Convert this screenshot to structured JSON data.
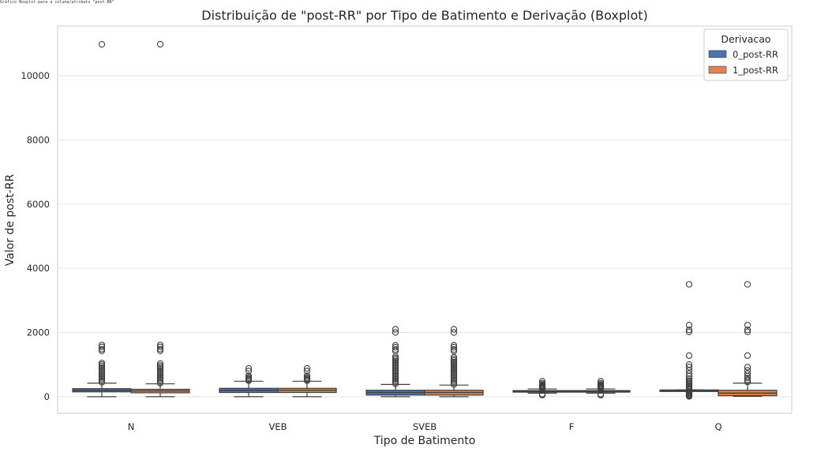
{
  "top_caption": "Gráfico Boxplot para a coluna/atributo \"post-RR\"",
  "chart_data": {
    "type": "boxplot",
    "title": "Distribuição de \"post-RR\" por Tipo de Batimento e Derivação (Boxplot)",
    "xlabel": "Tipo de Batimento",
    "ylabel": "Valor de post-RR",
    "categories": [
      "N",
      "VEB",
      "SVEB",
      "F",
      "Q"
    ],
    "ylim": [
      -520,
      11550
    ],
    "yticks": [
      0,
      2000,
      4000,
      6000,
      8000,
      10000
    ],
    "grid": true,
    "legend": {
      "title": "Derivacao",
      "placement": "top-right"
    },
    "series": [
      {
        "name": "0_post-RR",
        "color": "#4c72b0",
        "boxes": [
          {
            "category": "N",
            "whisker_low": 0,
            "q1": 150,
            "median": 200,
            "q3": 250,
            "whisker_high": 420,
            "outliers": [
              450,
              500,
              550,
              600,
              650,
              700,
              750,
              800,
              850,
              900,
              950,
              1000,
              1050,
              1430,
              1480,
              1550,
              1610,
              10980
            ]
          },
          {
            "category": "VEB",
            "whisker_low": 0,
            "q1": 130,
            "median": 200,
            "q3": 260,
            "whisker_high": 480,
            "outliers": [
              500,
              530,
              560,
              600,
              650,
              800,
              880
            ]
          },
          {
            "category": "SVEB",
            "whisker_low": 0,
            "q1": 50,
            "median": 130,
            "q3": 200,
            "whisker_high": 380,
            "outliers": [
              400,
              450,
              500,
              550,
              600,
              650,
              700,
              750,
              800,
              850,
              900,
              950,
              1000,
              1050,
              1100,
              1150,
              1200,
              1250,
              1420,
              1470,
              1540,
              1600,
              2000,
              2100
            ]
          },
          {
            "category": "F",
            "whisker_low": 110,
            "q1": 150,
            "median": 170,
            "q3": 190,
            "whisker_high": 240,
            "outliers": [
              50,
              60,
              80,
              250,
              270,
              290,
              310,
              330,
              350,
              380,
              420,
              480
            ]
          },
          {
            "category": "Q",
            "whisker_low": 170,
            "q1": 170,
            "median": 190,
            "q3": 210,
            "whisker_high": 210,
            "outliers": [
              10,
              30,
              50,
              80,
              100,
              130,
              150,
              230,
              260,
              300,
              340,
              380,
              420,
              460,
              500,
              560,
              640,
              720,
              820,
              920,
              1000,
              1280,
              2020,
              2080,
              2230,
              3500
            ]
          }
        ]
      },
      {
        "name": "1_post-RR",
        "color": "#dd8452",
        "boxes": [
          {
            "category": "N",
            "whisker_low": 0,
            "q1": 120,
            "median": 180,
            "q3": 230,
            "whisker_high": 400,
            "outliers": [
              420,
              470,
              520,
              570,
              620,
              670,
              720,
              770,
              820,
              870,
              920,
              970,
              1030,
              1430,
              1480,
              1550,
              1610,
              10980
            ]
          },
          {
            "category": "VEB",
            "whisker_low": 0,
            "q1": 130,
            "median": 200,
            "q3": 260,
            "whisker_high": 480,
            "outliers": [
              500,
              530,
              560,
              600,
              650,
              800,
              880
            ]
          },
          {
            "category": "SVEB",
            "whisker_low": 0,
            "q1": 50,
            "median": 130,
            "q3": 200,
            "whisker_high": 360,
            "outliers": [
              380,
              430,
              480,
              530,
              580,
              630,
              680,
              730,
              780,
              830,
              880,
              930,
              980,
              1030,
              1080,
              1130,
              1180,
              1230,
              1420,
              1470,
              1540,
              1600,
              2000,
              2100
            ]
          },
          {
            "category": "F",
            "whisker_low": 110,
            "q1": 150,
            "median": 170,
            "q3": 190,
            "whisker_high": 240,
            "outliers": [
              50,
              60,
              80,
              250,
              270,
              290,
              310,
              330,
              350,
              380,
              420,
              480
            ]
          },
          {
            "category": "Q",
            "whisker_low": 10,
            "q1": 30,
            "median": 110,
            "q3": 200,
            "whisker_high": 420,
            "outliers": [
              460,
              520,
              580,
              640,
              720,
              820,
              920,
              1280,
              2020,
              2080,
              2230,
              3500
            ]
          }
        ]
      }
    ]
  }
}
